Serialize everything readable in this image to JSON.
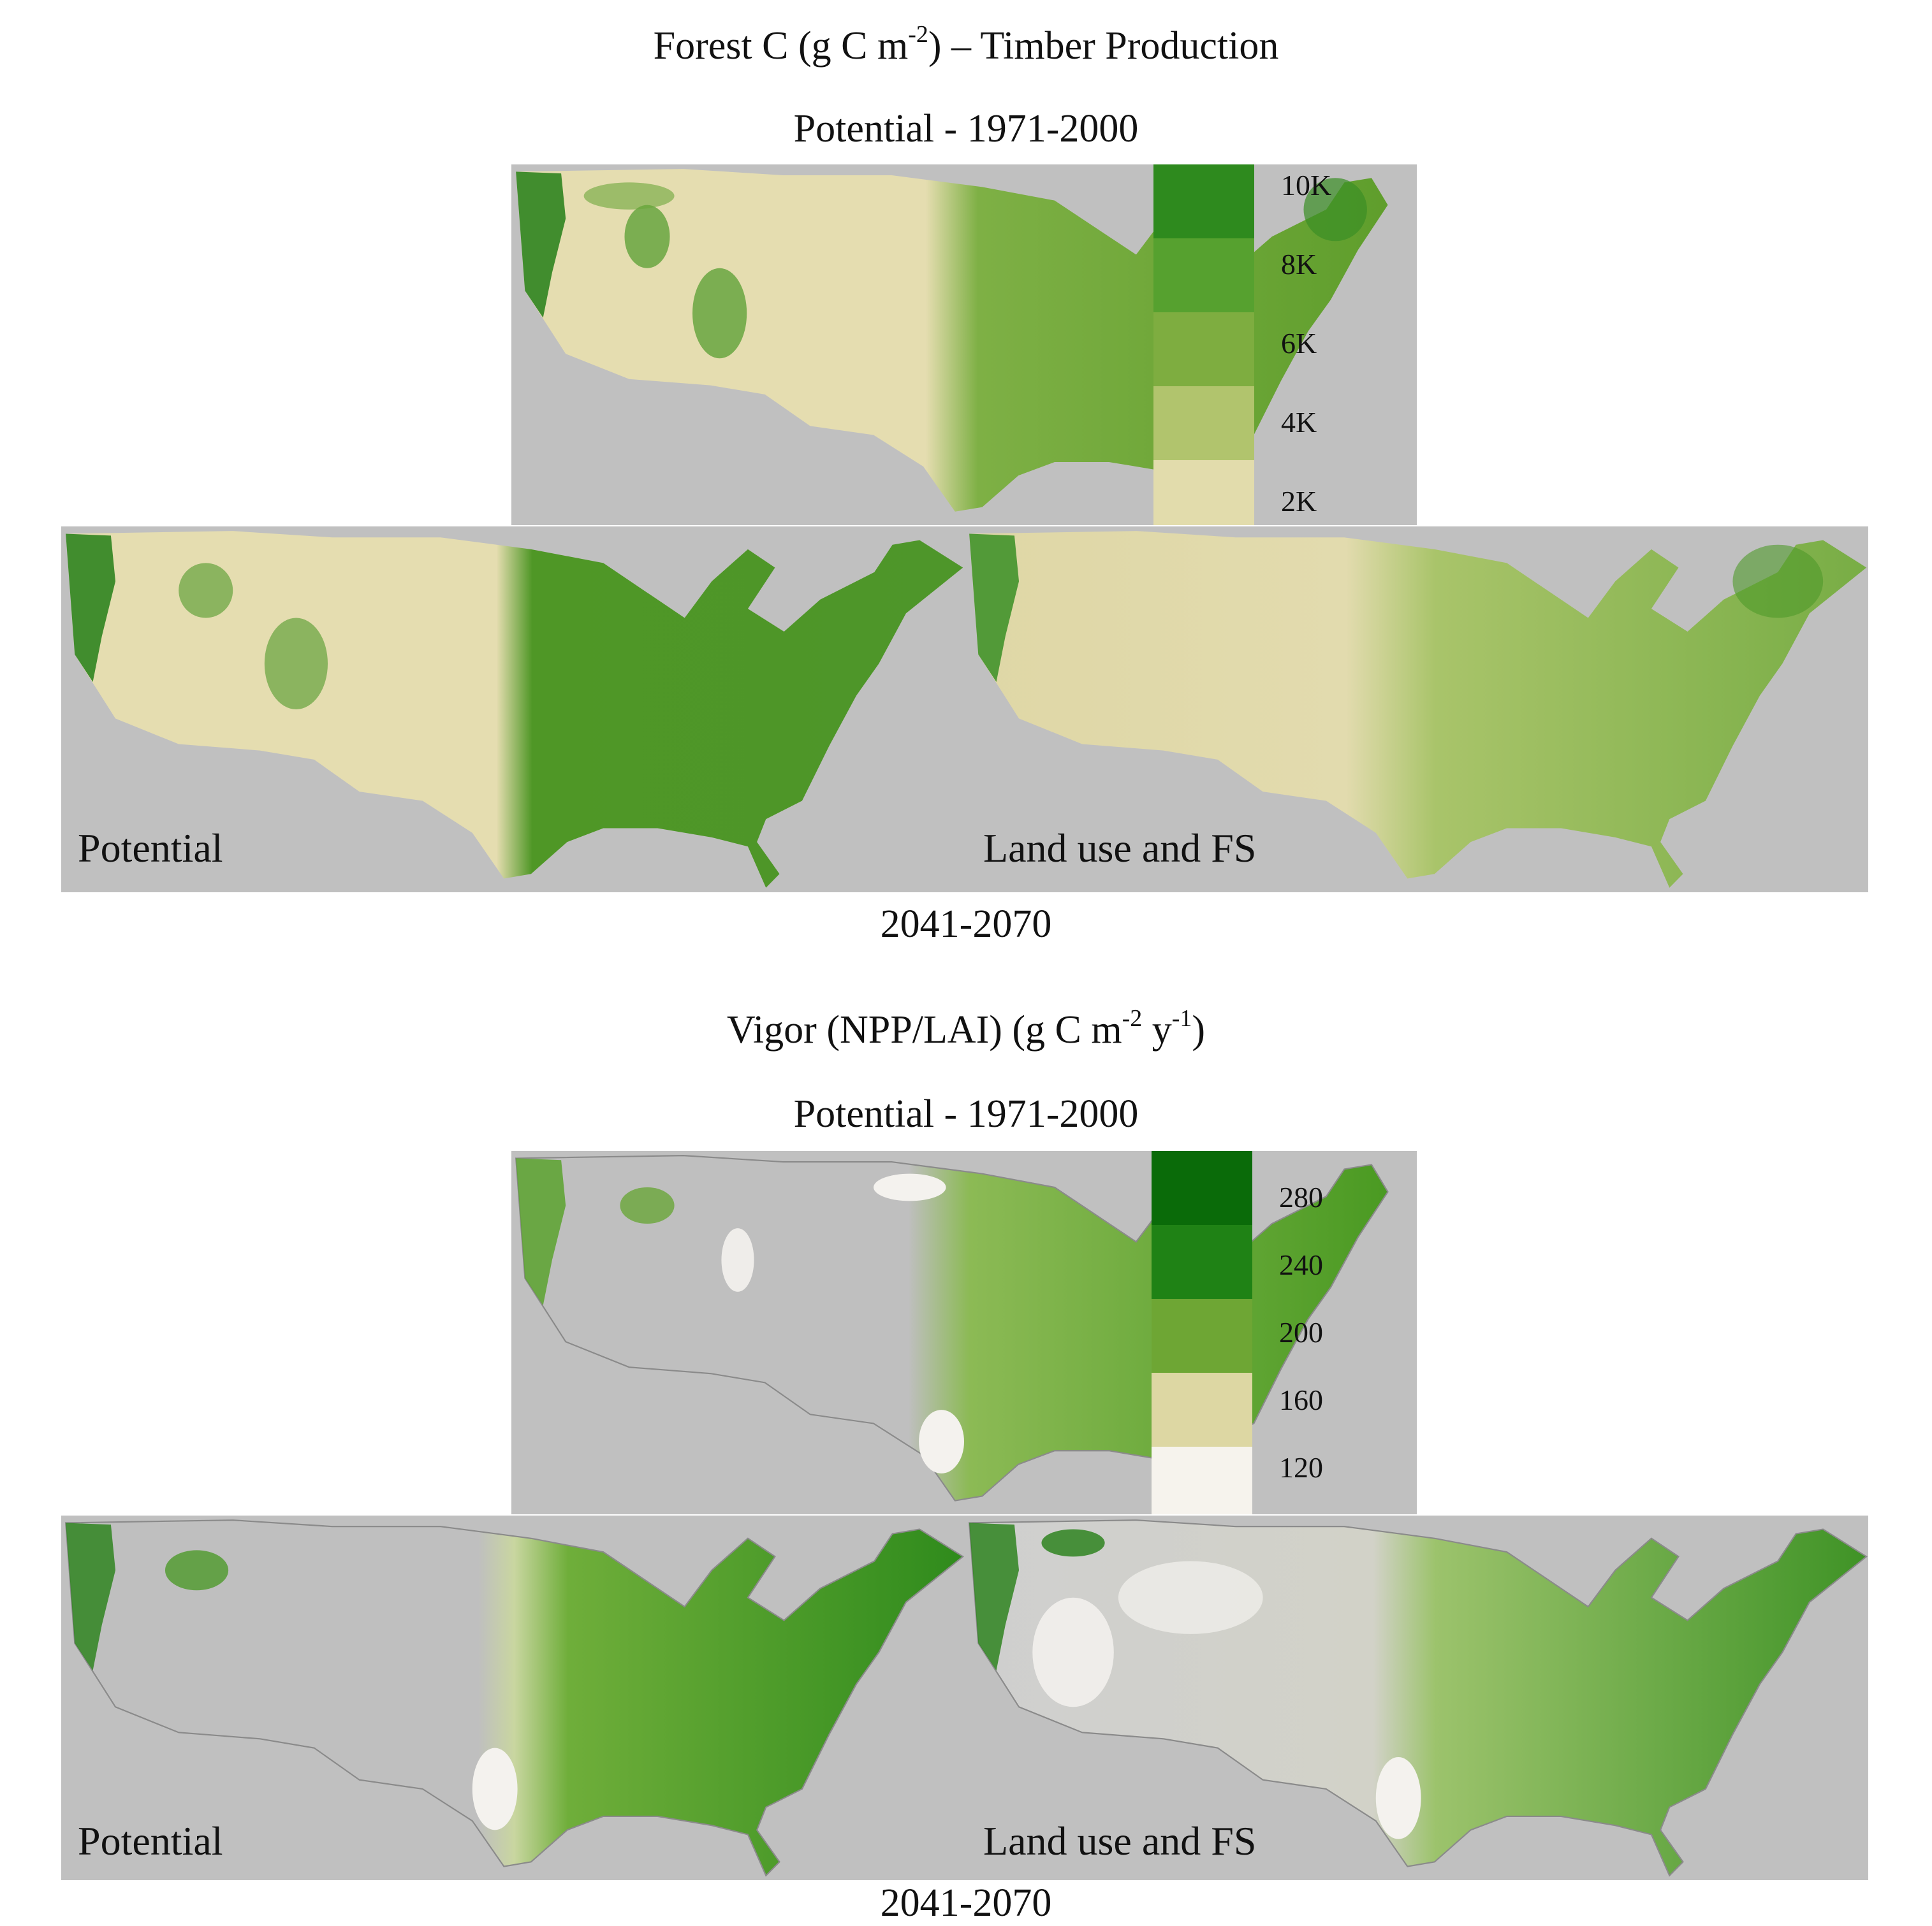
{
  "figure": {
    "forest_c": {
      "title_main": "Forest C (g C m",
      "title_exp": "-2",
      "title_tail": ") – Timber Production",
      "subtitle": "Potential - 1971-2000",
      "period_caption": "2041-2070",
      "left_label": "Potential",
      "right_label": "Land use and FS",
      "legend": [
        {
          "label": "10K",
          "color": "#2e8a1e"
        },
        {
          "label": "8K",
          "color": "#56a12f"
        },
        {
          "label": "6K",
          "color": "#7ead40"
        },
        {
          "label": "4K",
          "color": "#b1c46d"
        },
        {
          "label": "2K",
          "color": "#e2dcac"
        }
      ]
    },
    "vigor": {
      "title_main": "Vigor (NPP/LAI) (g C m",
      "title_exp1": "-2",
      "title_mid": " y",
      "title_exp2": "-1",
      "title_tail": ")",
      "subtitle": "Potential - 1971-2000",
      "period_caption": "2041-2070",
      "left_label": "Potential",
      "right_label": "Land use and FS",
      "legend": [
        {
          "label": "280",
          "color": "#0a6b09"
        },
        {
          "label": "240",
          "color": "#1f8215"
        },
        {
          "label": "200",
          "color": "#6ea634"
        },
        {
          "label": "160",
          "color": "#ddd7a3"
        },
        {
          "label": "120",
          "color": "#f6f3ed"
        }
      ]
    },
    "colors": {
      "panel_bg": "#c0c0c0",
      "forest_west": "#e5ddb0",
      "forest_east": "#5f9e2c",
      "forest_mountain": "#2f8420",
      "vigor_west": "#bfbfbf",
      "vigor_east": "#4a9a22",
      "vigor_low": "#f4f2ee"
    }
  }
}
